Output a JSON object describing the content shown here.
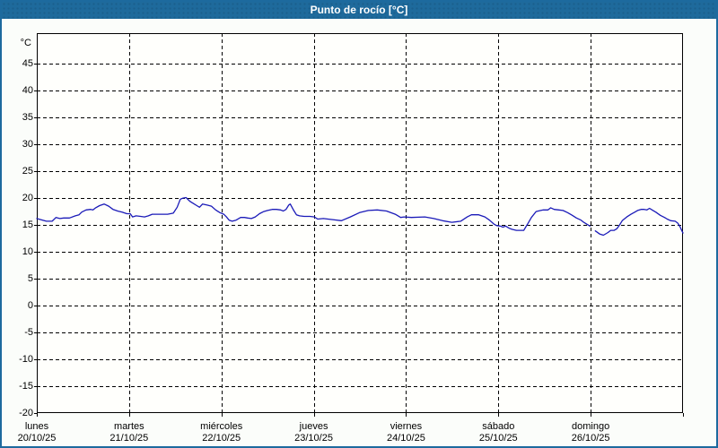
{
  "window": {
    "title": "Punto de rocío [°C]"
  },
  "colors": {
    "header_bg": "#1e6a9c",
    "header_text": "#ffffff",
    "window_border": "#1d6a9e",
    "window_bg": "#fbfdfa",
    "plot_bg": "#fffffc",
    "grid": "#000000",
    "axis": "#000000",
    "line": "#1a1ab8",
    "label_text": "#000000"
  },
  "chart_data": {
    "type": "line",
    "title": "Punto de rocío [°C]",
    "unit_label": "°C",
    "xlabel": "",
    "ylabel": "°C",
    "ylim": [
      -20,
      50.7
    ],
    "y_ticks": [
      45,
      40,
      35,
      30,
      25,
      20,
      15,
      10,
      5,
      0,
      -5,
      -10,
      -15,
      -20
    ],
    "grid": "dashed",
    "legend": "none",
    "x_range_hours": [
      0,
      168
    ],
    "x_days": [
      {
        "label": "lunes",
        "date": "20/10/25"
      },
      {
        "label": "martes",
        "date": "21/10/25"
      },
      {
        "label": "miércoles",
        "date": "22/10/25"
      },
      {
        "label": "jueves",
        "date": "23/10/25"
      },
      {
        "label": "viernes",
        "date": "24/10/25"
      },
      {
        "label": "sábado",
        "date": "25/10/25"
      },
      {
        "label": "domingo",
        "date": "26/10/25"
      }
    ],
    "series": [
      {
        "name": "punto de rocío",
        "unit": "°C",
        "points": [
          [
            0,
            16.2
          ],
          [
            1,
            16.0
          ],
          [
            2.5,
            15.7
          ],
          [
            4,
            15.7
          ],
          [
            5,
            16.4
          ],
          [
            6,
            16.2
          ],
          [
            7,
            16.3
          ],
          [
            8.5,
            16.3
          ],
          [
            10,
            16.7
          ],
          [
            11,
            16.9
          ],
          [
            11.7,
            17.4
          ],
          [
            12.8,
            17.8
          ],
          [
            14,
            17.9
          ],
          [
            14.6,
            17.8
          ],
          [
            15.3,
            18.2
          ],
          [
            16.3,
            18.6
          ],
          [
            17.5,
            18.9
          ],
          [
            18.7,
            18.5
          ],
          [
            19.8,
            17.9
          ],
          [
            21,
            17.6
          ],
          [
            22.2,
            17.4
          ],
          [
            23.4,
            17.1
          ],
          [
            24.3,
            17.1
          ],
          [
            24.9,
            16.5
          ],
          [
            25.8,
            16.7
          ],
          [
            27,
            16.6
          ],
          [
            28,
            16.5
          ],
          [
            29,
            16.7
          ],
          [
            30,
            17.0
          ],
          [
            32,
            17.0
          ],
          [
            34,
            17.0
          ],
          [
            35.5,
            17.2
          ],
          [
            36.5,
            18.3
          ],
          [
            37.3,
            19.8
          ],
          [
            38,
            20.0
          ],
          [
            38.8,
            20.1
          ],
          [
            39.8,
            19.4
          ],
          [
            40.7,
            19.0
          ],
          [
            41.6,
            18.6
          ],
          [
            42.3,
            18.3
          ],
          [
            43.1,
            18.9
          ],
          [
            44.3,
            18.7
          ],
          [
            45.4,
            18.5
          ],
          [
            46.5,
            17.8
          ],
          [
            47.6,
            17.3
          ],
          [
            48.6,
            17.0
          ],
          [
            49.3,
            16.5
          ],
          [
            50,
            15.9
          ],
          [
            50.8,
            15.7
          ],
          [
            51.8,
            15.9
          ],
          [
            53,
            16.4
          ],
          [
            54,
            16.4
          ],
          [
            54.8,
            16.3
          ],
          [
            55.8,
            16.2
          ],
          [
            56.8,
            16.5
          ],
          [
            57.9,
            17.1
          ],
          [
            59,
            17.5
          ],
          [
            60,
            17.7
          ],
          [
            61.2,
            17.9
          ],
          [
            62.3,
            17.9
          ],
          [
            63.4,
            17.8
          ],
          [
            64.1,
            17.6
          ],
          [
            64.8,
            17.9
          ],
          [
            65.5,
            18.7
          ],
          [
            65.9,
            18.9
          ],
          [
            66.8,
            17.7
          ],
          [
            67.5,
            16.9
          ],
          [
            68.3,
            16.7
          ],
          [
            69.5,
            16.6
          ],
          [
            71,
            16.6
          ],
          [
            72.2,
            16.5
          ],
          [
            73,
            16.1
          ],
          [
            74.5,
            16.2
          ],
          [
            76.9,
            16.0
          ],
          [
            79.2,
            15.8
          ],
          [
            81.5,
            16.5
          ],
          [
            83.9,
            17.3
          ],
          [
            86.2,
            17.7
          ],
          [
            88.5,
            17.8
          ],
          [
            90.9,
            17.6
          ],
          [
            93.2,
            17.0
          ],
          [
            94.6,
            16.4
          ],
          [
            95.5,
            16.5
          ],
          [
            97.4,
            16.4
          ],
          [
            100.9,
            16.5
          ],
          [
            103.2,
            16.2
          ],
          [
            105.5,
            15.8
          ],
          [
            107.9,
            15.5
          ],
          [
            110.2,
            15.7
          ],
          [
            111.9,
            16.5
          ],
          [
            113,
            16.9
          ],
          [
            114.9,
            16.9
          ],
          [
            116.5,
            16.5
          ],
          [
            117.7,
            15.9
          ],
          [
            118.8,
            15.2
          ],
          [
            119.5,
            14.9
          ],
          [
            120.5,
            14.8
          ],
          [
            121.2,
            14.6
          ],
          [
            121.9,
            14.8
          ],
          [
            122.8,
            14.4
          ],
          [
            123.5,
            14.2
          ],
          [
            124.7,
            14.0
          ],
          [
            125.9,
            14.0
          ],
          [
            126.6,
            14.0
          ],
          [
            127.1,
            14.6
          ],
          [
            127.7,
            15.3
          ],
          [
            128.6,
            16.4
          ],
          [
            129.8,
            17.5
          ],
          [
            131,
            17.7
          ],
          [
            131.7,
            17.8
          ],
          [
            132.9,
            17.8
          ],
          [
            133.6,
            18.2
          ],
          [
            134.5,
            17.9
          ],
          [
            135.7,
            17.8
          ],
          [
            136.8,
            17.7
          ],
          [
            138,
            17.3
          ],
          [
            139.2,
            16.8
          ],
          [
            140.3,
            16.3
          ],
          [
            141.5,
            15.9
          ],
          [
            142.2,
            15.5
          ],
          [
            142.9,
            15.2
          ],
          [
            143.8,
            14.8
          ],
          null,
          [
            145.2,
            13.9
          ],
          [
            146.4,
            13.3
          ],
          [
            147.3,
            13.1
          ],
          [
            148.5,
            13.6
          ],
          [
            149.2,
            14.0
          ],
          [
            150.1,
            14.0
          ],
          [
            150.8,
            14.3
          ],
          [
            151.5,
            15.0
          ],
          [
            152.2,
            15.8
          ],
          [
            153.4,
            16.5
          ],
          [
            154.5,
            17.0
          ],
          [
            155.5,
            17.4
          ],
          [
            156.2,
            17.7
          ],
          [
            157.1,
            17.9
          ],
          [
            157.9,
            17.9
          ],
          [
            158.6,
            17.8
          ],
          [
            159.3,
            18.1
          ],
          [
            160.2,
            17.7
          ],
          [
            160.9,
            17.4
          ],
          [
            162.1,
            16.8
          ],
          [
            163.2,
            16.4
          ],
          [
            163.9,
            16.1
          ],
          [
            164.8,
            15.8
          ],
          [
            166,
            15.7
          ],
          [
            166.7,
            15.3
          ],
          [
            167.2,
            14.7
          ],
          [
            167.8,
            13.8
          ],
          [
            168,
            13.5
          ]
        ]
      }
    ]
  }
}
